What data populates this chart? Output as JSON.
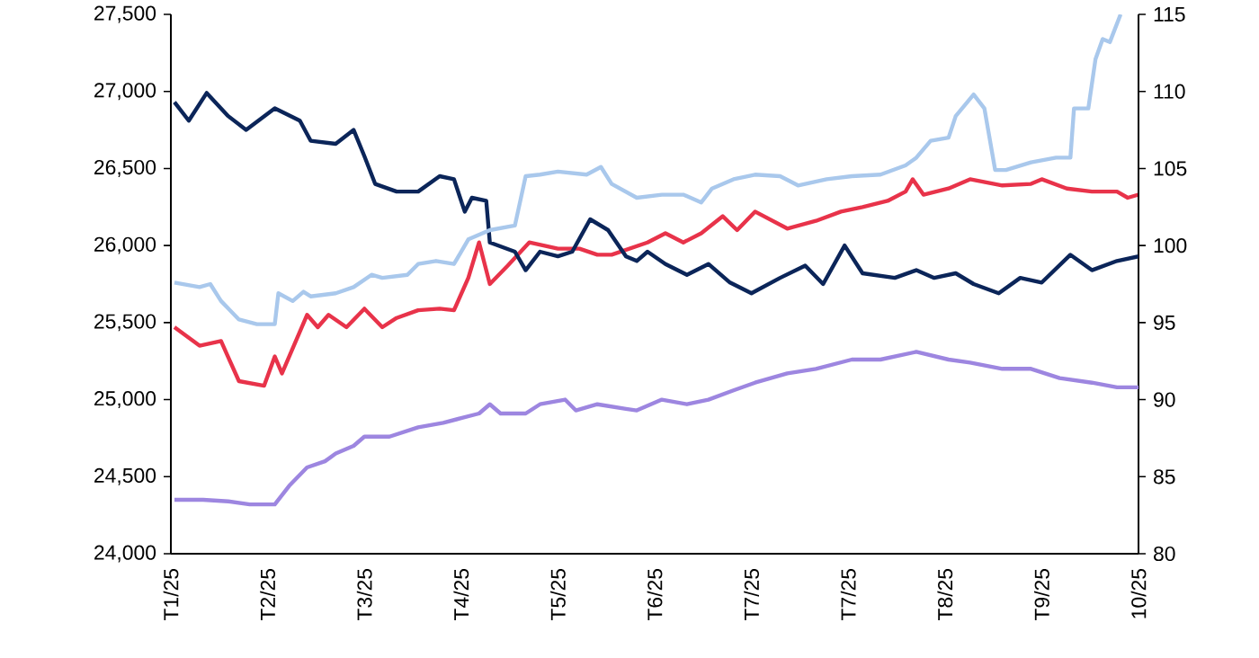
{
  "chart_data": {
    "type": "line",
    "xlim": [
      "2025-01-20",
      "2025-10-17"
    ],
    "xticks": [
      {
        "value": "2025-01-20",
        "label": "T1/25"
      },
      {
        "value": "2025-02-16",
        "label": "T2/25"
      },
      {
        "value": "2025-03-15",
        "label": "T3/25"
      },
      {
        "value": "2025-04-11",
        "label": "T4/25"
      },
      {
        "value": "2025-05-08",
        "label": "T5/25"
      },
      {
        "value": "2025-06-04",
        "label": "T6/25"
      },
      {
        "value": "2025-07-01",
        "label": "T7/25"
      },
      {
        "value": "2025-07-28",
        "label": "T7/25"
      },
      {
        "value": "2025-08-24",
        "label": "T8/25"
      },
      {
        "value": "2025-09-20",
        "label": "T9/25"
      },
      {
        "value": "2025-10-17",
        "label": "10/25"
      }
    ],
    "ylim": [
      24000,
      27500
    ],
    "yticks": [
      {
        "value": 24000,
        "label": "24,000"
      },
      {
        "value": 24500,
        "label": "24,500"
      },
      {
        "value": 25000,
        "label": "25,000"
      },
      {
        "value": 25500,
        "label": "25,500"
      },
      {
        "value": 26000,
        "label": "26,000"
      },
      {
        "value": 26500,
        "label": "26,500"
      },
      {
        "value": 27000,
        "label": "27,000"
      },
      {
        "value": 27500,
        "label": "27,500"
      }
    ],
    "y2lim": [
      80,
      115
    ],
    "y2ticks": [
      80,
      85,
      90,
      95,
      100,
      105,
      110,
      115
    ],
    "series": [
      {
        "color": "#e8334a",
        "x": [
          "2025-01-21",
          "2025-01-28",
          "2025-02-03",
          "2025-02-08",
          "2025-02-15",
          "2025-02-18",
          "2025-02-20",
          "2025-02-27",
          "2025-03-02",
          "2025-03-05",
          "2025-03-10",
          "2025-03-15",
          "2025-03-20",
          "2025-03-24",
          "2025-03-30",
          "2025-04-05",
          "2025-04-09",
          "2025-04-13",
          "2025-04-16",
          "2025-04-19",
          "2025-04-24",
          "2025-04-30",
          "2025-05-08",
          "2025-05-14",
          "2025-05-19",
          "2025-05-23",
          "2025-06-02",
          "2025-06-07",
          "2025-06-12",
          "2025-06-17",
          "2025-06-23",
          "2025-06-27",
          "2025-07-02",
          "2025-07-11",
          "2025-07-19",
          "2025-07-26",
          "2025-08-01",
          "2025-08-08",
          "2025-08-13",
          "2025-08-15",
          "2025-08-18",
          "2025-08-25",
          "2025-08-31",
          "2025-09-09",
          "2025-09-17",
          "2025-09-20",
          "2025-09-27",
          "2025-10-04",
          "2025-10-11",
          "2025-10-14",
          "2025-10-17"
        ],
        "values": [
          25470,
          25350,
          25380,
          25120,
          25090,
          25280,
          25170,
          25550,
          25470,
          25550,
          25470,
          25590,
          25470,
          25530,
          25580,
          25590,
          25580,
          25790,
          26020,
          25750,
          25870,
          26020,
          25980,
          25980,
          25940,
          25940,
          26020,
          26080,
          26020,
          26080,
          26190,
          26100,
          26220,
          26110,
          26160,
          26220,
          26250,
          26290,
          26350,
          26430,
          26330,
          26370,
          26430,
          26390,
          26400,
          26430,
          26370,
          26350,
          26350,
          26310,
          26330
        ]
      },
      {
        "color": "#0b2559",
        "axis": "y2",
        "x": [
          "2025-01-21",
          "2025-01-25",
          "2025-01-30",
          "2025-02-05",
          "2025-02-10",
          "2025-02-18",
          "2025-02-25",
          "2025-02-28",
          "2025-03-07",
          "2025-03-12",
          "2025-03-15",
          "2025-03-18",
          "2025-03-24",
          "2025-03-30",
          "2025-04-05",
          "2025-04-09",
          "2025-04-12",
          "2025-04-14",
          "2025-04-18",
          "2025-04-19",
          "2025-04-26",
          "2025-04-29",
          "2025-05-03",
          "2025-05-08",
          "2025-05-12",
          "2025-05-17",
          "2025-05-22",
          "2025-05-27",
          "2025-05-30",
          "2025-06-02",
          "2025-06-07",
          "2025-06-13",
          "2025-06-19",
          "2025-06-25",
          "2025-07-01",
          "2025-07-09",
          "2025-07-16",
          "2025-07-21",
          "2025-07-27",
          "2025-08-01",
          "2025-08-10",
          "2025-08-16",
          "2025-08-21",
          "2025-08-27",
          "2025-09-01",
          "2025-09-08",
          "2025-09-14",
          "2025-09-20",
          "2025-09-28",
          "2025-10-04",
          "2025-10-11",
          "2025-10-17"
        ],
        "values": [
          109.3,
          108.1,
          109.9,
          108.4,
          107.5,
          108.9,
          108.1,
          106.8,
          106.6,
          107.5,
          105.8,
          104.0,
          103.5,
          103.5,
          104.5,
          104.3,
          102.2,
          103.1,
          102.9,
          100.2,
          99.6,
          98.4,
          99.6,
          99.3,
          99.6,
          101.7,
          101.0,
          99.3,
          99.0,
          99.6,
          98.8,
          98.1,
          98.8,
          97.6,
          96.9,
          97.9,
          98.7,
          97.5,
          100.0,
          98.2,
          97.9,
          98.4,
          97.9,
          98.2,
          97.5,
          96.9,
          97.9,
          97.6,
          99.4,
          98.4,
          99.0,
          99.3
        ]
      },
      {
        "color": "#a9c8ec",
        "axis": "y2",
        "x": [
          "2025-01-21",
          "2025-01-28",
          "2025-01-31",
          "2025-02-03",
          "2025-02-08",
          "2025-02-13",
          "2025-02-18",
          "2025-02-19",
          "2025-02-23",
          "2025-02-26",
          "2025-02-28",
          "2025-03-07",
          "2025-03-12",
          "2025-03-17",
          "2025-03-20",
          "2025-03-27",
          "2025-03-30",
          "2025-04-04",
          "2025-04-09",
          "2025-04-13",
          "2025-04-19",
          "2025-04-26",
          "2025-04-29",
          "2025-05-03",
          "2025-05-08",
          "2025-05-16",
          "2025-05-20",
          "2025-05-23",
          "2025-05-30",
          "2025-06-06",
          "2025-06-12",
          "2025-06-17",
          "2025-06-20",
          "2025-06-26",
          "2025-07-02",
          "2025-07-09",
          "2025-07-14",
          "2025-07-22",
          "2025-07-29",
          "2025-08-06",
          "2025-08-13",
          "2025-08-16",
          "2025-08-20",
          "2025-08-25",
          "2025-08-27",
          "2025-09-01",
          "2025-09-04",
          "2025-09-07",
          "2025-09-10",
          "2025-09-17",
          "2025-09-24",
          "2025-09-28",
          "2025-09-29",
          "2025-10-03",
          "2025-10-05",
          "2025-10-07",
          "2025-10-09",
          "2025-10-12"
        ],
        "values": [
          97.6,
          97.3,
          97.5,
          96.4,
          95.2,
          94.9,
          94.9,
          96.9,
          96.4,
          97.0,
          96.7,
          96.9,
          97.3,
          98.1,
          97.9,
          98.1,
          98.8,
          99.0,
          98.8,
          100.4,
          101.0,
          101.3,
          104.5,
          104.6,
          104.8,
          104.6,
          105.1,
          104.0,
          103.1,
          103.3,
          103.3,
          102.8,
          103.7,
          104.3,
          104.6,
          104.5,
          103.9,
          104.3,
          104.5,
          104.6,
          105.2,
          105.7,
          106.8,
          107.0,
          108.4,
          109.8,
          108.9,
          104.9,
          104.9,
          105.4,
          105.7,
          105.7,
          108.9,
          108.9,
          112.1,
          113.4,
          113.2,
          115
        ]
      },
      {
        "color": "#9d86e0",
        "axis": "y2",
        "x": [
          "2025-01-21",
          "2025-01-29",
          "2025-02-05",
          "2025-02-11",
          "2025-02-18",
          "2025-02-22",
          "2025-02-27",
          "2025-03-04",
          "2025-03-07",
          "2025-03-12",
          "2025-03-15",
          "2025-03-22",
          "2025-03-30",
          "2025-04-06",
          "2025-04-11",
          "2025-04-16",
          "2025-04-19",
          "2025-04-22",
          "2025-04-29",
          "2025-05-03",
          "2025-05-10",
          "2025-05-13",
          "2025-05-19",
          "2025-05-27",
          "2025-05-30",
          "2025-06-06",
          "2025-06-13",
          "2025-06-19",
          "2025-06-26",
          "2025-07-02",
          "2025-07-11",
          "2025-07-19",
          "2025-07-29",
          "2025-08-06",
          "2025-08-16",
          "2025-08-25",
          "2025-08-31",
          "2025-09-09",
          "2025-09-17",
          "2025-09-25",
          "2025-10-04",
          "2025-10-11",
          "2025-10-17"
        ],
        "values": [
          83.5,
          83.5,
          83.4,
          83.2,
          83.2,
          84.4,
          85.6,
          86.0,
          86.5,
          87.0,
          87.6,
          87.6,
          88.2,
          88.5,
          88.8,
          89.1,
          89.7,
          89.1,
          89.1,
          89.7,
          90.0,
          89.3,
          89.7,
          89.4,
          89.3,
          90.0,
          89.7,
          90.0,
          90.6,
          91.1,
          91.7,
          92.0,
          92.6,
          92.6,
          93.1,
          92.6,
          92.4,
          92.0,
          92.0,
          91.4,
          91.1,
          90.8,
          90.8
        ]
      }
    ]
  }
}
